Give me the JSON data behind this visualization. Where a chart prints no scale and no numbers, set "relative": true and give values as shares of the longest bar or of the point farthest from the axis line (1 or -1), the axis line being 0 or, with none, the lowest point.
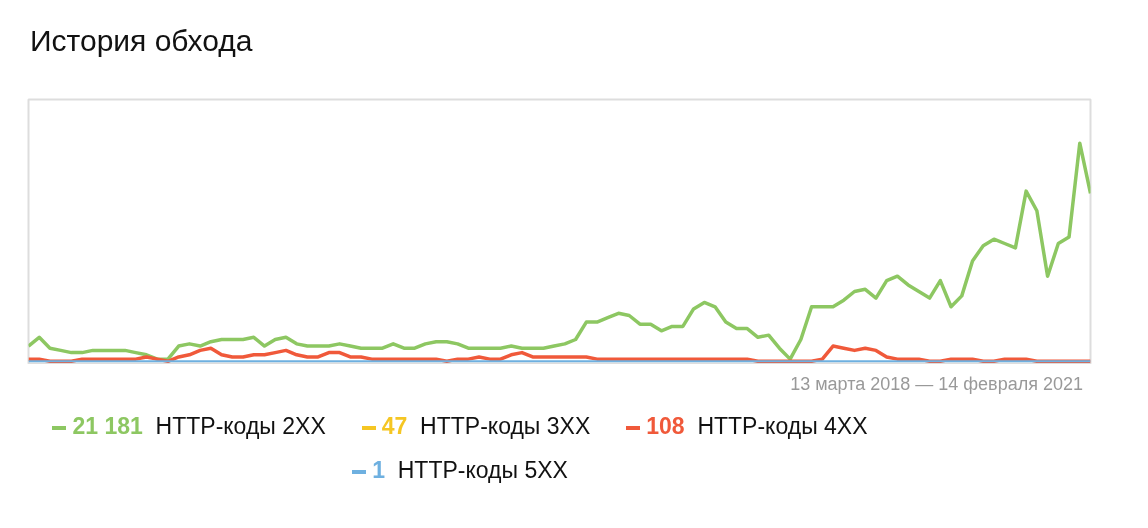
{
  "chart_data": {
    "type": "line",
    "title": "История обхода",
    "relative": true,
    "legend": "bottom",
    "grid": false,
    "line_style": "solid",
    "annotations": [
      "13 марта 2018 — 14 февраля 2021",
      "21 181",
      "47",
      "108",
      "1"
    ],
    "categories": [
      null,
      null,
      null,
      null,
      null,
      null,
      null,
      null,
      null,
      null,
      null,
      null,
      null,
      null,
      null,
      null,
      null,
      null,
      null,
      null,
      null,
      null,
      null,
      null,
      null,
      null,
      null,
      null,
      null,
      null,
      null,
      null,
      null,
      null,
      null,
      null,
      null,
      null,
      null,
      null,
      null,
      null,
      null,
      null,
      null,
      null,
      null,
      null,
      null,
      null,
      null,
      null,
      null,
      null,
      null,
      null,
      null,
      null,
      null,
      null,
      null,
      null,
      null,
      null,
      null,
      null,
      null,
      null,
      null,
      null,
      null,
      null,
      null,
      null,
      null,
      null,
      null,
      null,
      null,
      null,
      null,
      null,
      null,
      null,
      null,
      null,
      null,
      null,
      null,
      null,
      null,
      null,
      null,
      null,
      null,
      null,
      null,
      null,
      null,
      null
    ],
    "series": [
      {
        "name": "HTTP-коды 2XX",
        "color": "#8dc762",
        "values": [
          0.07,
          0.11,
          0.06,
          0.05,
          0.04,
          0.04,
          0.05,
          0.05,
          0.05,
          0.05,
          0.04,
          0.03,
          0.01,
          0.01,
          0.07,
          0.08,
          0.07,
          0.09,
          0.1,
          0.1,
          0.1,
          0.11,
          0.07,
          0.1,
          0.11,
          0.08,
          0.07,
          0.07,
          0.07,
          0.08,
          0.07,
          0.06,
          0.06,
          0.06,
          0.08,
          0.06,
          0.06,
          0.08,
          0.09,
          0.09,
          0.08,
          0.06,
          0.06,
          0.06,
          0.06,
          0.07,
          0.06,
          0.06,
          0.06,
          0.07,
          0.08,
          0.1,
          0.18,
          0.18,
          0.2,
          0.22,
          0.21,
          0.17,
          0.17,
          0.14,
          0.16,
          0.16,
          0.24,
          0.27,
          0.25,
          0.18,
          0.15,
          0.15,
          0.11,
          0.12,
          0.06,
          0.01,
          0.1,
          0.25,
          0.25,
          0.25,
          0.28,
          0.32,
          0.33,
          0.29,
          0.37,
          0.39,
          0.35,
          0.32,
          0.29,
          0.37,
          0.25,
          0.3,
          0.46,
          0.53,
          0.56,
          0.54,
          0.52,
          0.78,
          0.69,
          0.39,
          0.54,
          0.57,
          1.0,
          0.77
        ]
      },
      {
        "name": "HTTP-коды 3XX",
        "color": "#f5c623",
        "values": [
          null,
          null,
          null,
          null,
          null,
          null,
          null,
          null,
          null,
          null,
          null,
          null,
          null,
          null,
          null,
          null,
          null,
          null,
          null,
          null,
          null,
          null,
          null,
          null,
          null,
          null,
          null,
          null,
          null,
          null,
          null,
          null,
          null,
          null,
          null,
          null,
          null,
          null,
          null,
          null,
          null,
          null,
          null,
          null,
          null,
          null,
          null,
          null,
          null,
          null,
          null,
          null,
          null,
          null,
          null,
          null,
          null,
          null,
          null,
          null,
          null,
          null,
          null,
          null,
          null,
          null,
          null,
          null,
          null,
          null,
          null,
          null,
          null,
          null,
          null,
          null,
          null,
          null,
          null,
          null,
          null,
          null,
          null,
          null,
          null,
          null,
          null,
          null,
          null,
          null,
          null,
          null,
          null,
          null,
          null,
          null,
          null,
          null,
          null,
          null
        ]
      },
      {
        "name": "HTTP-коды 4XX",
        "color": "#f0593a",
        "values": [
          0.01,
          0.01,
          0,
          0,
          0,
          0.01,
          0.01,
          0.01,
          0.01,
          0.01,
          0.01,
          0.02,
          0.01,
          0,
          0.02,
          0.03,
          0.05,
          0.06,
          0.03,
          0.02,
          0.02,
          0.03,
          0.03,
          0.04,
          0.05,
          0.03,
          0.02,
          0.02,
          0.04,
          0.04,
          0.02,
          0.02,
          0.01,
          0.01,
          0.01,
          0.01,
          0.01,
          0.01,
          0.01,
          0,
          0.01,
          0.01,
          0.02,
          0.01,
          0.01,
          0.03,
          0.04,
          0.02,
          0.02,
          0.02,
          0.02,
          0.02,
          0.02,
          0.01,
          0.01,
          0.01,
          0.01,
          0.01,
          0.01,
          0.01,
          0.01,
          0.01,
          0.01,
          0.01,
          0.01,
          0.01,
          0.01,
          0.01,
          0,
          0,
          0,
          0,
          0,
          0,
          0.01,
          0.07,
          0.06,
          0.05,
          0.06,
          0.05,
          0.02,
          0.01,
          0.01,
          0.01,
          0,
          0,
          0.01,
          0.01,
          0.01,
          0,
          0,
          0.01,
          0.01,
          0.01,
          0,
          0,
          0,
          0,
          0,
          0
        ]
      },
      {
        "name": "HTTP-коды 5XX",
        "color": "#6eb0e0",
        "values": [
          0,
          0,
          0,
          0,
          0,
          0,
          0,
          0,
          0,
          0,
          0,
          0,
          0,
          0,
          0,
          0,
          0,
          0,
          0,
          0,
          0,
          0,
          0,
          0,
          0,
          0,
          0,
          0,
          0,
          0,
          0,
          0,
          0,
          0,
          0,
          0,
          0,
          0,
          0,
          0,
          0,
          0,
          0,
          0,
          0,
          0,
          0,
          0,
          0,
          0,
          0,
          0,
          0,
          0,
          0,
          0,
          0,
          0,
          0,
          0,
          0,
          0,
          0,
          0,
          0,
          0,
          0,
          0,
          0,
          0,
          0,
          0,
          0,
          0,
          0,
          0,
          0,
          0,
          0,
          0,
          0,
          0,
          0,
          0,
          0,
          0,
          0,
          0,
          0,
          0,
          0,
          0,
          0,
          0,
          0,
          0,
          0,
          0,
          0,
          0
        ]
      }
    ]
  }
}
